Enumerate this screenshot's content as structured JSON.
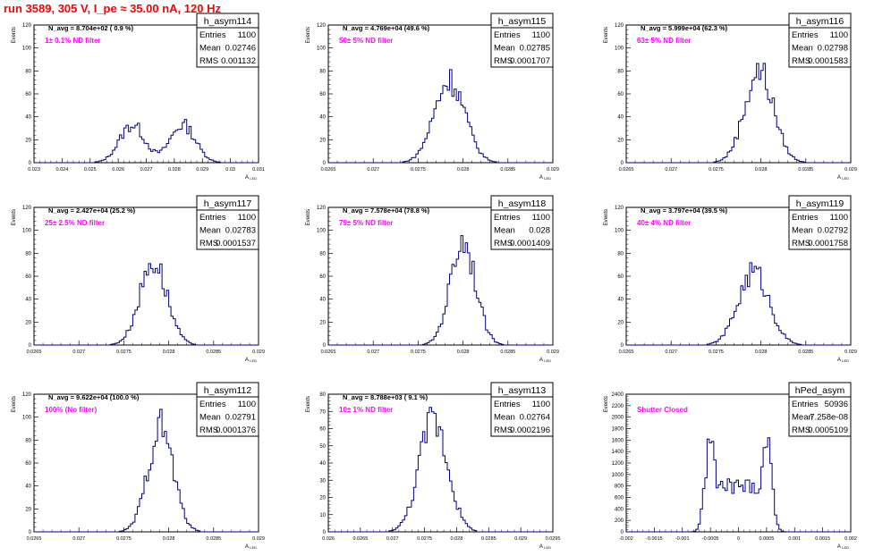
{
  "page": {
    "title": "run 3589,   305 V, I_pe ≈ 35.00 nA, 120 Hz"
  },
  "stat_labels": {
    "entries": "Entries",
    "mean": "Mean",
    "rms": "RMS"
  },
  "y_axis_label": "Events",
  "x_axis_label": "A",
  "x_axis_label_sub": "LED",
  "colors": {
    "histogram": "#000080",
    "annotation": "#ff00ff",
    "title": "#ff0000"
  },
  "chart_data": [
    {
      "type": "histogram",
      "name": "h_asym114",
      "stats": {
        "entries": "1100",
        "mean": "0.02746",
        "rms": "0.001132"
      },
      "n_avg": "N_avg = 8.704e+02 ( 0.9 %)",
      "annotation": "1± 0.1% ND filter",
      "xlim": [
        0.023,
        0.031
      ],
      "xticks": [
        "0.023",
        "0.024",
        "0.025",
        "0.026",
        "0.027",
        "0.028",
        "0.029",
        "0.03",
        "0.031"
      ],
      "yticks": [
        "0",
        "20",
        "40",
        "60",
        "80",
        "100",
        "120"
      ],
      "ymax": 120,
      "peaks": [
        {
          "mean": 0.0265,
          "sigma": 0.00045,
          "height": 33
        },
        {
          "mean": 0.0283,
          "sigma": 0.00045,
          "height": 33
        }
      ]
    },
    {
      "type": "histogram",
      "name": "h_asym115",
      "stats": {
        "entries": "1100",
        "mean": "0.02785",
        "rms": "0.0001707"
      },
      "n_avg": "N_avg = 4.769e+04 (49.6 %)",
      "annotation": "50± 5% ND filter",
      "xlim": [
        0.0265,
        0.029
      ],
      "xticks": [
        "0.0265",
        "0.027",
        "0.0275",
        "0.028",
        "0.0285",
        "0.029"
      ],
      "yticks": [
        "0",
        "20",
        "40",
        "60",
        "80",
        "100",
        "120"
      ],
      "ymax": 120,
      "peaks": [
        {
          "mean": 0.02785,
          "sigma": 0.00017,
          "height": 72
        }
      ]
    },
    {
      "type": "histogram",
      "name": "h_asym116",
      "stats": {
        "entries": "1100",
        "mean": "0.02798",
        "rms": "0.0001583"
      },
      "n_avg": "N_avg = 5.999e+04 (62.3 %)",
      "annotation": "63± 5% ND filter",
      "xlim": [
        0.0265,
        0.029
      ],
      "xticks": [
        "0.0265",
        "0.027",
        "0.0275",
        "0.028",
        "0.0285",
        "0.029"
      ],
      "yticks": [
        "0",
        "20",
        "40",
        "60",
        "80",
        "100",
        "120"
      ],
      "ymax": 120,
      "peaks": [
        {
          "mean": 0.02798,
          "sigma": 0.00016,
          "height": 80
        }
      ]
    },
    {
      "type": "histogram",
      "name": "h_asym117",
      "stats": {
        "entries": "1100",
        "mean": "0.02783",
        "rms": "0.0001537"
      },
      "n_avg": "N_avg = 2.427e+04 (25.2 %)",
      "annotation": "25± 2.5% ND filter",
      "xlim": [
        0.0265,
        0.029
      ],
      "xticks": [
        "0.0265",
        "0.027",
        "0.0275",
        "0.028",
        "0.0285",
        "0.029"
      ],
      "yticks": [
        "0",
        "20",
        "40",
        "60",
        "80",
        "100",
        "120"
      ],
      "ymax": 120,
      "peaks": [
        {
          "mean": 0.02783,
          "sigma": 0.00015,
          "height": 73
        }
      ]
    },
    {
      "type": "histogram",
      "name": "h_asym118",
      "stats": {
        "entries": "1100",
        "mean": "0.028",
        "rms": "0.0001409"
      },
      "n_avg": "N_avg = 7.578e+04 (78.8 %)",
      "annotation": "79± 5% ND filter",
      "xlim": [
        0.0265,
        0.029
      ],
      "xticks": [
        "0.0265",
        "0.027",
        "0.0275",
        "0.028",
        "0.0285",
        "0.029"
      ],
      "yticks": [
        "0",
        "20",
        "40",
        "60",
        "80",
        "100",
        "120"
      ],
      "ymax": 120,
      "peaks": [
        {
          "mean": 0.028,
          "sigma": 0.00014,
          "height": 92
        }
      ]
    },
    {
      "type": "histogram",
      "name": "h_asym119",
      "stats": {
        "entries": "1100",
        "mean": "0.02792",
        "rms": "0.0001758"
      },
      "n_avg": "N_avg = 3.797e+04 (39.5 %)",
      "annotation": "40± 4% ND filter",
      "xlim": [
        0.0265,
        0.029
      ],
      "xticks": [
        "0.0265",
        "0.027",
        "0.0275",
        "0.028",
        "0.0285",
        "0.029"
      ],
      "yticks": [
        "0",
        "20",
        "40",
        "60",
        "80",
        "100",
        "120"
      ],
      "ymax": 120,
      "peaks": [
        {
          "mean": 0.02792,
          "sigma": 0.00017,
          "height": 64
        }
      ]
    },
    {
      "type": "histogram",
      "name": "h_asym112",
      "stats": {
        "entries": "1100",
        "mean": "0.02791",
        "rms": "0.0001376"
      },
      "n_avg": "N_avg = 9.622e+04 (100.0 %)",
      "annotation": "100% (No filter)",
      "xlim": [
        0.0265,
        0.029
      ],
      "xticks": [
        "0.0265",
        "0.027",
        "0.0275",
        "0.028",
        "0.0285",
        "0.029"
      ],
      "yticks": [
        "0",
        "20",
        "40",
        "60",
        "80",
        "100",
        "120"
      ],
      "ymax": 120,
      "peaks": [
        {
          "mean": 0.02791,
          "sigma": 0.00014,
          "height": 92
        }
      ]
    },
    {
      "type": "histogram",
      "name": "h_asym113",
      "stats": {
        "entries": "1100",
        "mean": "0.02764",
        "rms": "0.0002196"
      },
      "n_avg": "N_avg = 8.788e+03 ( 9.1 %)",
      "annotation": "10± 1% ND filter",
      "xlim": [
        0.026,
        0.0295
      ],
      "xticks": [
        "0.026",
        "0.0265",
        "0.027",
        "0.0275",
        "0.028",
        "0.0285",
        "0.029",
        "0.0295"
      ],
      "yticks": [
        "0",
        "10",
        "20",
        "30",
        "40",
        "50",
        "60",
        "70",
        "80"
      ],
      "ymax": 80,
      "peaks": [
        {
          "mean": 0.02764,
          "sigma": 0.00022,
          "height": 66
        }
      ]
    },
    {
      "type": "histogram",
      "name": "hPed_asym",
      "stats": {
        "entries": "50936",
        "mean": "7.258e-08",
        "rms": "0.0005109"
      },
      "n_avg": "",
      "annotation": "Shutter Closed",
      "xlim": [
        -0.002,
        0.002
      ],
      "xticks": [
        "-0.002",
        "-0.0015",
        "-0.001",
        "-0.0005",
        "0",
        "0.0005",
        "0.001",
        "0.0015",
        "0.002"
      ],
      "yticks": [
        "0",
        "200",
        "400",
        "600",
        "800",
        "1000",
        "1200",
        "1400",
        "1600",
        "1800",
        "2000",
        "2200",
        "2400"
      ],
      "ymax": 2400,
      "peaks": [
        {
          "mean": -0.0005,
          "sigma": 9e-05,
          "height": 1650
        },
        {
          "mean": 0.0005,
          "sigma": 9e-05,
          "height": 1650
        }
      ],
      "plateau": {
        "from": -0.00045,
        "to": 0.00045,
        "height": 800
      }
    }
  ]
}
